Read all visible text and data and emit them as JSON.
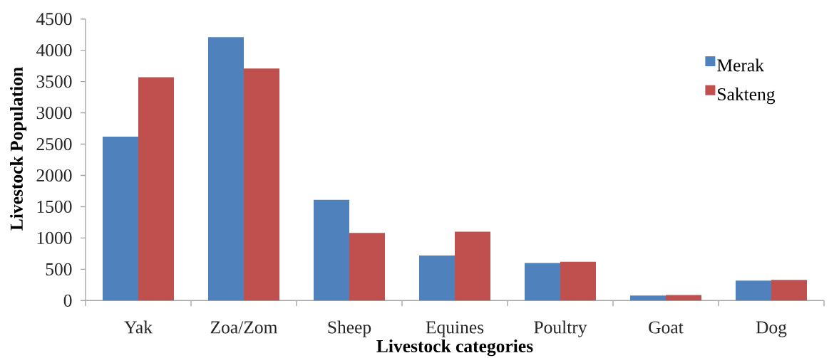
{
  "chart_data": {
    "type": "bar",
    "xlabel": "Livestock categories",
    "ylabel": "Livestock Population",
    "categories": [
      "Yak",
      "Zoa/Zom",
      "Sheep",
      "Equines",
      "Poultry",
      "Goat",
      "Dog"
    ],
    "series": [
      {
        "name": "Merak",
        "color": "#4f81bd",
        "values": [
          2620,
          4210,
          1610,
          720,
          600,
          80,
          320
        ]
      },
      {
        "name": "Sakteng",
        "color": "#c0504d",
        "values": [
          3570,
          3710,
          1080,
          1100,
          620,
          90,
          330
        ]
      }
    ],
    "ylim": [
      0,
      4500
    ],
    "yticks": [
      0,
      500,
      1000,
      1500,
      2000,
      2500,
      3000,
      3500,
      4000,
      4500
    ],
    "legend": "top right"
  }
}
